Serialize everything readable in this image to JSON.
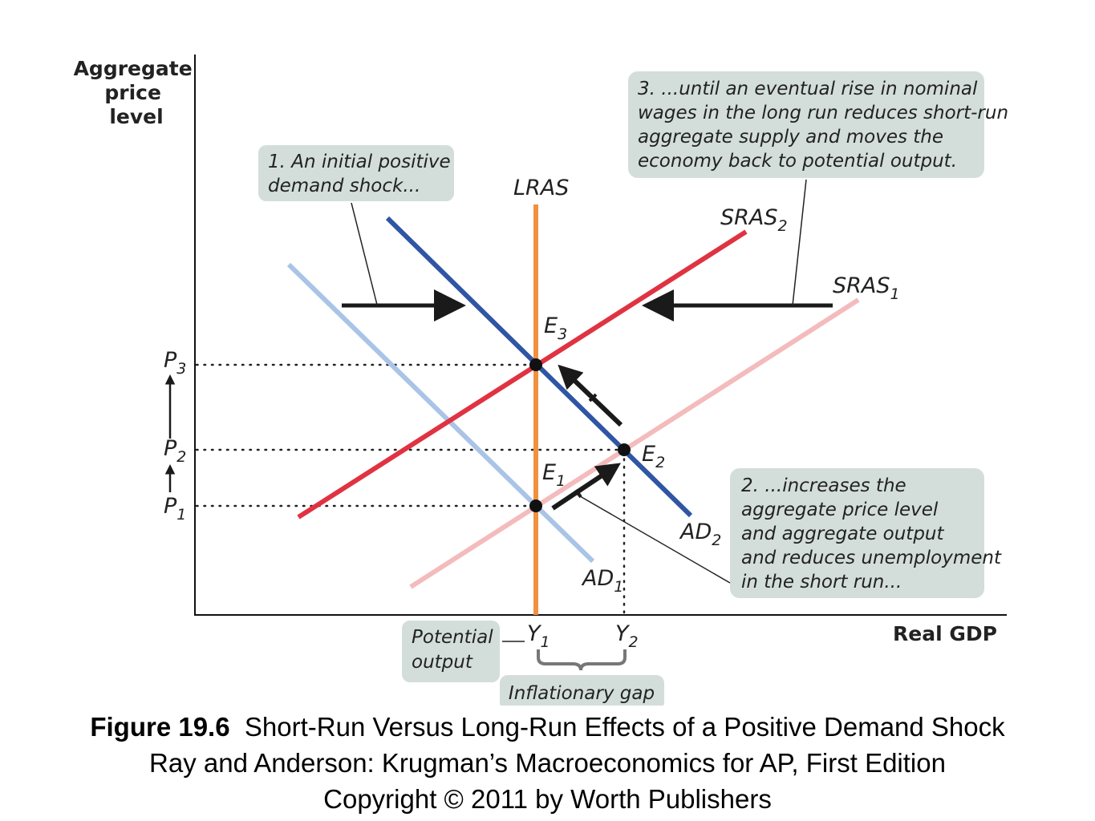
{
  "chart_data": {
    "type": "line",
    "title": "",
    "xlabel": "Real GDP",
    "ylabel_lines": [
      "Aggregate",
      "price",
      "level"
    ],
    "grid": false,
    "curves": [
      {
        "name": "LRAS",
        "kind": "vertical",
        "color": "#F0913F"
      },
      {
        "name": "SRAS",
        "sub": "1",
        "color": "#F4BBBD"
      },
      {
        "name": "SRAS",
        "sub": "2",
        "color": "#E03342"
      },
      {
        "name": "AD",
        "sub": "1",
        "color": "#A9C4E6"
      },
      {
        "name": "AD",
        "sub": "2",
        "color": "#2F55A4"
      }
    ],
    "equilibria": [
      {
        "name": "E",
        "sub": "1",
        "x": "Y1",
        "y": "P1"
      },
      {
        "name": "E",
        "sub": "2",
        "x": "Y2",
        "y": "P2"
      },
      {
        "name": "E",
        "sub": "3",
        "x": "Y1",
        "y": "P3"
      }
    ],
    "y_ticks": [
      {
        "name": "P",
        "sub": "3"
      },
      {
        "name": "P",
        "sub": "2"
      },
      {
        "name": "P",
        "sub": "1"
      }
    ],
    "x_ticks": [
      {
        "name": "Y",
        "sub": "1"
      },
      {
        "name": "Y",
        "sub": "2"
      }
    ],
    "annotations": {
      "shock": [
        "1. An initial positive",
        "demand shock..."
      ],
      "short_run": [
        "2. ...increases the",
        "aggregate price level",
        "and aggregate output",
        "and reduces unemployment",
        "in the short run..."
      ],
      "long_run": [
        "3. ...until an eventual rise in nominal",
        "wages in the long run reduces short-run",
        "aggregate supply and moves the",
        "economy back to potential output."
      ],
      "potential": [
        "Potential",
        "output"
      ],
      "gap": "Inflationary gap"
    },
    "colors": {
      "callout_bg": "#D3DEDB",
      "axis": "#000000"
    }
  },
  "caption": {
    "figure_label": "Figure 19.6",
    "figure_title": "Short-Run Versus Long-Run Effects of a Positive Demand Shock",
    "line2": "Ray and Anderson: Krugman’s Macroeconomics for AP, First Edition",
    "line3": "Copyright © 2011 by Worth Publishers"
  }
}
